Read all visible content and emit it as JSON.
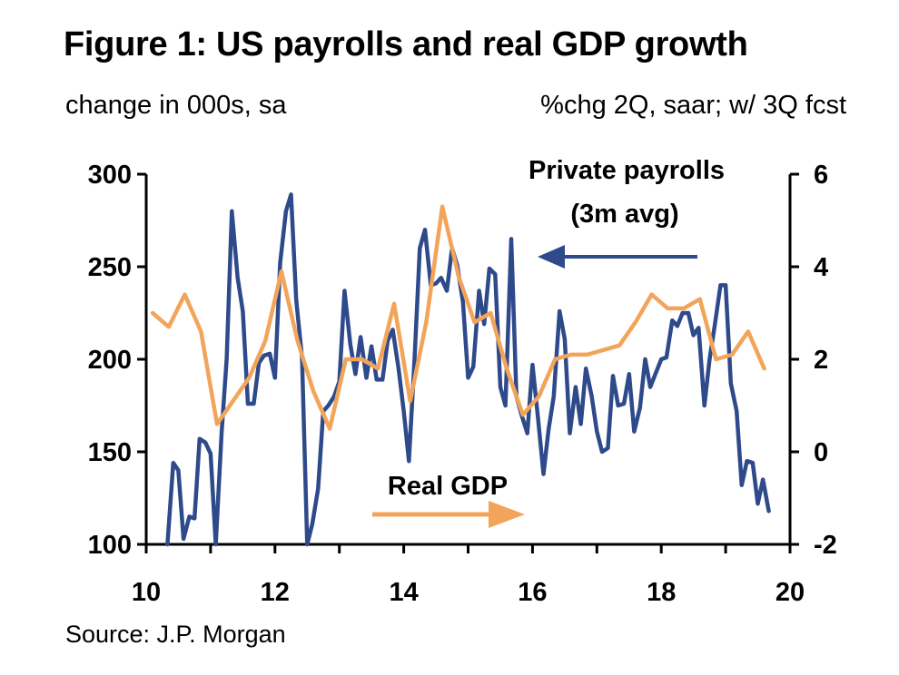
{
  "colors": {
    "payrolls": "#2E4A8A",
    "gdp": "#F2A55A",
    "axis": "#000000"
  },
  "chart_data": {
    "type": "line",
    "title": "Figure 1: US payrolls and real GDP growth",
    "left_axis_label": "change in 000s, sa",
    "right_axis_label": "%chg 2Q, saar; w/ 3Q fcst",
    "source": "Source: J.P. Morgan",
    "xlim": [
      10,
      20
    ],
    "x_ticks": [
      10,
      12,
      14,
      16,
      18,
      20
    ],
    "ylim_left": [
      100,
      300
    ],
    "y_ticks_left": [
      100,
      150,
      200,
      250,
      300
    ],
    "ylim_right": [
      -2,
      6
    ],
    "y_ticks_right": [
      -2,
      0,
      2,
      4,
      6
    ],
    "grid": false,
    "annotations": [
      {
        "series": "payrolls",
        "lines": [
          "Private payrolls",
          "(3m avg)"
        ],
        "arrow": "left"
      },
      {
        "series": "gdp",
        "lines": [
          "Real GDP"
        ],
        "arrow": "right"
      }
    ],
    "series": [
      {
        "key": "payrolls",
        "name": "Private payrolls (3m avg)",
        "axis": "left",
        "x": [
          10.33,
          10.42,
          10.5,
          10.58,
          10.67,
          10.75,
          10.83,
          10.92,
          11.0,
          11.08,
          11.17,
          11.25,
          11.33,
          11.42,
          11.5,
          11.58,
          11.67,
          11.75,
          11.83,
          11.92,
          12.0,
          12.08,
          12.17,
          12.25,
          12.33,
          12.42,
          12.5,
          12.58,
          12.67,
          12.75,
          12.83,
          12.92,
          13.0,
          13.08,
          13.17,
          13.25,
          13.33,
          13.42,
          13.5,
          13.58,
          13.67,
          13.75,
          13.83,
          13.92,
          14.0,
          14.08,
          14.17,
          14.25,
          14.33,
          14.42,
          14.5,
          14.58,
          14.67,
          14.75,
          14.83,
          14.92,
          15.0,
          15.08,
          15.17,
          15.25,
          15.33,
          15.42,
          15.5,
          15.58,
          15.67,
          15.75,
          15.83,
          15.92,
          16.0,
          16.08,
          16.17,
          16.25,
          16.33,
          16.42,
          16.5,
          16.58,
          16.67,
          16.75,
          16.83,
          16.92,
          17.0,
          17.08,
          17.17,
          17.25,
          17.33,
          17.42,
          17.5,
          17.58,
          17.67,
          17.75,
          17.83,
          17.92,
          18.0,
          18.08,
          18.17,
          18.25,
          18.33,
          18.42,
          18.5,
          18.58,
          18.67,
          18.75,
          18.83,
          18.92,
          19.0,
          19.08,
          19.17,
          19.25,
          19.33,
          19.42,
          19.5,
          19.58,
          19.67
        ],
        "values": [
          100,
          144,
          140,
          103,
          115,
          114,
          157,
          155,
          149,
          100,
          160,
          200,
          280,
          244,
          226,
          176,
          176,
          198,
          202,
          203,
          190,
          252,
          280,
          289,
          232,
          201,
          100,
          111,
          130,
          172,
          175,
          180,
          188,
          237,
          208,
          192,
          212,
          190,
          207,
          189,
          189,
          210,
          216,
          195,
          172,
          145,
          202,
          260,
          270,
          240,
          241,
          244,
          237,
          260,
          251,
          231,
          190,
          196,
          237,
          219,
          249,
          246,
          185,
          175,
          265,
          180,
          170,
          160,
          197,
          170,
          138,
          162,
          180,
          226,
          211,
          160,
          185,
          165,
          195,
          180,
          161,
          150,
          152,
          191,
          175,
          176,
          192,
          161,
          174,
          200,
          185,
          193,
          200,
          201,
          221,
          218,
          225,
          225,
          213,
          217,
          175,
          200,
          218,
          240,
          240,
          187,
          172,
          132,
          145,
          144,
          122,
          135,
          118
        ]
      },
      {
        "key": "gdp",
        "name": "Real GDP",
        "axis": "right",
        "x": [
          10.1,
          10.35,
          10.6,
          10.85,
          11.1,
          11.35,
          11.6,
          11.85,
          12.1,
          12.35,
          12.6,
          12.85,
          13.1,
          13.35,
          13.6,
          13.85,
          14.1,
          14.35,
          14.6,
          14.85,
          15.1,
          15.35,
          15.6,
          15.85,
          16.1,
          16.35,
          16.6,
          16.85,
          17.1,
          17.35,
          17.6,
          17.85,
          18.1,
          18.35,
          18.6,
          18.85,
          19.1,
          19.35,
          19.6
        ],
        "values": [
          3.0,
          2.7,
          3.4,
          2.6,
          0.6,
          1.1,
          1.6,
          2.4,
          3.9,
          2.4,
          1.3,
          0.5,
          2.0,
          2.0,
          1.8,
          3.2,
          1.1,
          2.8,
          5.3,
          3.8,
          2.8,
          3.0,
          1.8,
          0.8,
          1.2,
          2.0,
          2.1,
          2.1,
          2.2,
          2.3,
          2.8,
          3.4,
          3.1,
          3.1,
          3.3,
          2.0,
          2.1,
          2.6,
          1.8
        ]
      }
    ]
  }
}
